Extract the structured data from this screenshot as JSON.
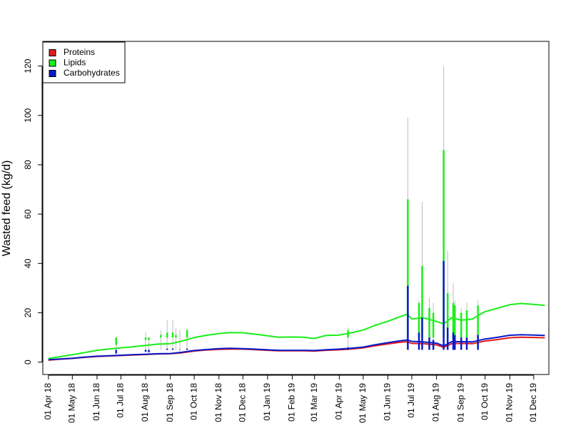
{
  "chart_data": {
    "type": "line",
    "title": "",
    "xlabel": "",
    "ylabel": "Wasted feed (kg/d)",
    "ylim": [
      -5,
      130
    ],
    "xlim": [
      "2018-03-25",
      "2019-12-20"
    ],
    "y_ticks": [
      0,
      20,
      40,
      60,
      80,
      100,
      120
    ],
    "x_ticks": [
      {
        "date": "2018-04-01",
        "label": "01 Apr 18"
      },
      {
        "date": "2018-05-01",
        "label": "01 May 18"
      },
      {
        "date": "2018-06-01",
        "label": "01 Jun 18"
      },
      {
        "date": "2018-07-01",
        "label": "01 Jul 18"
      },
      {
        "date": "2018-08-01",
        "label": "01 Aug 18"
      },
      {
        "date": "2018-09-01",
        "label": "01 Sep 18"
      },
      {
        "date": "2018-10-01",
        "label": "01 Oct 18"
      },
      {
        "date": "2018-11-01",
        "label": "01 Nov 18"
      },
      {
        "date": "2018-12-01",
        "label": "01 Dec 18"
      },
      {
        "date": "2019-01-01",
        "label": "01 Jan 19"
      },
      {
        "date": "2019-02-01",
        "label": "01 Feb 19"
      },
      {
        "date": "2019-03-01",
        "label": "01 Mar 19"
      },
      {
        "date": "2019-04-01",
        "label": "01 Apr 19"
      },
      {
        "date": "2019-05-01",
        "label": "01 May 19"
      },
      {
        "date": "2019-06-01",
        "label": "01 Jun 19"
      },
      {
        "date": "2019-07-01",
        "label": "01 Jul 19"
      },
      {
        "date": "2019-08-01",
        "label": "01 Aug 19"
      },
      {
        "date": "2019-09-01",
        "label": "01 Sep 19"
      },
      {
        "date": "2019-10-01",
        "label": "01 Oct 19"
      },
      {
        "date": "2019-11-01",
        "label": "01 Nov 19"
      },
      {
        "date": "2019-12-01",
        "label": "01 Dec 19"
      }
    ],
    "legend_position": "top-left",
    "grid": false,
    "series": [
      {
        "name": "Proteins",
        "color": "#e31a1c",
        "points": [
          [
            "2018-04-01",
            0.8
          ],
          [
            "2018-04-15",
            1.2
          ],
          [
            "2018-05-01",
            1.5
          ],
          [
            "2018-05-15",
            1.9
          ],
          [
            "2018-06-01",
            2.3
          ],
          [
            "2018-06-15",
            2.5
          ],
          [
            "2018-07-01",
            2.7
          ],
          [
            "2018-07-15",
            2.9
          ],
          [
            "2018-08-01",
            3.1
          ],
          [
            "2018-08-15",
            3.3
          ],
          [
            "2018-09-01",
            3.4
          ],
          [
            "2018-09-15",
            3.8
          ],
          [
            "2018-10-01",
            4.5
          ],
          [
            "2018-10-15",
            4.9
          ],
          [
            "2018-11-01",
            5.2
          ],
          [
            "2018-11-15",
            5.3
          ],
          [
            "2018-12-01",
            5.3
          ],
          [
            "2018-12-15",
            5.1
          ],
          [
            "2019-01-01",
            4.8
          ],
          [
            "2019-01-15",
            4.6
          ],
          [
            "2019-02-01",
            4.6
          ],
          [
            "2019-02-15",
            4.6
          ],
          [
            "2019-03-01",
            4.5
          ],
          [
            "2019-03-15",
            4.8
          ],
          [
            "2019-04-01",
            5.0
          ],
          [
            "2019-04-15",
            5.3
          ],
          [
            "2019-05-01",
            5.8
          ],
          [
            "2019-05-15",
            6.6
          ],
          [
            "2019-06-01",
            7.4
          ],
          [
            "2019-06-15",
            8.0
          ],
          [
            "2019-06-25",
            8.3
          ],
          [
            "2019-07-01",
            7.6
          ],
          [
            "2019-07-15",
            7.5
          ],
          [
            "2019-08-01",
            7.0
          ],
          [
            "2019-08-10",
            6.0
          ],
          [
            "2019-08-20",
            7.5
          ],
          [
            "2019-09-01",
            7.6
          ],
          [
            "2019-09-15",
            7.5
          ],
          [
            "2019-10-01",
            8.6
          ],
          [
            "2019-10-15",
            9.1
          ],
          [
            "2019-11-01",
            9.9
          ],
          [
            "2019-11-15",
            10.1
          ],
          [
            "2019-12-01",
            10.0
          ],
          [
            "2019-12-15",
            9.9
          ]
        ]
      },
      {
        "name": "Lipids",
        "color": "#1aee1a",
        "points": [
          [
            "2018-04-01",
            1.5
          ],
          [
            "2018-04-15",
            2.2
          ],
          [
            "2018-05-01",
            3.0
          ],
          [
            "2018-05-15",
            3.8
          ],
          [
            "2018-06-01",
            4.8
          ],
          [
            "2018-06-15",
            5.3
          ],
          [
            "2018-07-01",
            5.8
          ],
          [
            "2018-07-15",
            6.2
          ],
          [
            "2018-08-01",
            6.8
          ],
          [
            "2018-08-15",
            7.3
          ],
          [
            "2018-09-01",
            7.5
          ],
          [
            "2018-09-15",
            8.5
          ],
          [
            "2018-10-01",
            10.0
          ],
          [
            "2018-10-15",
            10.8
          ],
          [
            "2018-11-01",
            11.6
          ],
          [
            "2018-11-15",
            12.0
          ],
          [
            "2018-12-01",
            11.9
          ],
          [
            "2018-12-15",
            11.4
          ],
          [
            "2019-01-01",
            10.7
          ],
          [
            "2019-01-15",
            10.1
          ],
          [
            "2019-02-01",
            10.2
          ],
          [
            "2019-02-15",
            10.1
          ],
          [
            "2019-03-01",
            9.6
          ],
          [
            "2019-03-15",
            10.8
          ],
          [
            "2019-04-01",
            11.0
          ],
          [
            "2019-04-15",
            11.8
          ],
          [
            "2019-05-01",
            13.0
          ],
          [
            "2019-05-15",
            14.8
          ],
          [
            "2019-06-01",
            16.6
          ],
          [
            "2019-06-15",
            18.3
          ],
          [
            "2019-06-25",
            19.4
          ],
          [
            "2019-07-01",
            17.5
          ],
          [
            "2019-07-15",
            18.0
          ],
          [
            "2019-08-01",
            16.5
          ],
          [
            "2019-08-10",
            15.5
          ],
          [
            "2019-08-20",
            18.0
          ],
          [
            "2019-09-01",
            17.0
          ],
          [
            "2019-09-15",
            17.5
          ],
          [
            "2019-10-01",
            20.5
          ],
          [
            "2019-10-15",
            21.7
          ],
          [
            "2019-11-01",
            23.3
          ],
          [
            "2019-11-15",
            23.8
          ],
          [
            "2019-12-01",
            23.4
          ],
          [
            "2019-12-15",
            23.0
          ]
        ]
      },
      {
        "name": "Carbohydrates",
        "color": "#0a1ac8",
        "points": [
          [
            "2018-04-01",
            1.0
          ],
          [
            "2018-04-15",
            1.3
          ],
          [
            "2018-05-01",
            1.6
          ],
          [
            "2018-05-15",
            2.0
          ],
          [
            "2018-06-01",
            2.4
          ],
          [
            "2018-06-15",
            2.6
          ],
          [
            "2018-07-01",
            2.8
          ],
          [
            "2018-07-15",
            3.0
          ],
          [
            "2018-08-01",
            3.2
          ],
          [
            "2018-08-15",
            3.4
          ],
          [
            "2018-09-01",
            3.5
          ],
          [
            "2018-09-15",
            4.0
          ],
          [
            "2018-10-01",
            4.7
          ],
          [
            "2018-10-15",
            5.1
          ],
          [
            "2018-11-01",
            5.5
          ],
          [
            "2018-11-15",
            5.6
          ],
          [
            "2018-12-01",
            5.5
          ],
          [
            "2018-12-15",
            5.3
          ],
          [
            "2019-01-01",
            5.0
          ],
          [
            "2019-01-15",
            4.8
          ],
          [
            "2019-02-01",
            4.8
          ],
          [
            "2019-02-15",
            4.8
          ],
          [
            "2019-03-01",
            4.7
          ],
          [
            "2019-03-15",
            5.0
          ],
          [
            "2019-04-01",
            5.3
          ],
          [
            "2019-04-15",
            5.6
          ],
          [
            "2019-05-01",
            6.1
          ],
          [
            "2019-05-15",
            7.0
          ],
          [
            "2019-06-01",
            7.9
          ],
          [
            "2019-06-15",
            8.6
          ],
          [
            "2019-06-25",
            9.0
          ],
          [
            "2019-07-01",
            8.4
          ],
          [
            "2019-07-15",
            8.2
          ],
          [
            "2019-08-01",
            7.7
          ],
          [
            "2019-08-10",
            6.6
          ],
          [
            "2019-08-20",
            8.3
          ],
          [
            "2019-09-01",
            8.3
          ],
          [
            "2019-09-15",
            8.2
          ],
          [
            "2019-10-01",
            9.4
          ],
          [
            "2019-10-15",
            10.0
          ],
          [
            "2019-11-01",
            10.9
          ],
          [
            "2019-11-15",
            11.1
          ],
          [
            "2019-12-01",
            11.0
          ],
          [
            "2019-12-15",
            10.8
          ]
        ]
      }
    ],
    "spikes": [
      {
        "date": "2018-06-25",
        "grey": 8,
        "Lipids": 7,
        "Carbohydrates": 3.5
      },
      {
        "date": "2018-08-01",
        "grey": 12,
        "Lipids": 9,
        "Carbohydrates": 4.2
      },
      {
        "date": "2018-08-05",
        "grey": 10,
        "Lipids": 9,
        "Carbohydrates": 4
      },
      {
        "date": "2018-08-20",
        "grey": 13,
        "Lipids": 11,
        "Carbohydrates": 5
      },
      {
        "date": "2018-08-28",
        "grey": 17,
        "Lipids": 12,
        "Carbohydrates": 5.5
      },
      {
        "date": "2018-09-04",
        "grey": 17,
        "Lipids": 12,
        "Carbohydrates": 5.5
      },
      {
        "date": "2018-09-08",
        "grey": 14,
        "Lipids": 11,
        "Carbohydrates": 5
      },
      {
        "date": "2018-09-13",
        "grey": 13,
        "Lipids": 10,
        "Carbohydrates": 4.8
      },
      {
        "date": "2018-09-22",
        "grey": 14,
        "Lipids": 13,
        "Carbohydrates": 5.5
      },
      {
        "date": "2019-04-12",
        "grey": 14,
        "Lipids": 13,
        "Carbohydrates": 6
      },
      {
        "date": "2019-06-26",
        "grey": 99,
        "Lipids": 66,
        "Carbohydrates": 31
      },
      {
        "date": "2019-07-10",
        "grey": 25,
        "Lipids": 24,
        "Carbohydrates": 12
      },
      {
        "date": "2019-07-14",
        "grey": 65,
        "Lipids": 39,
        "Carbohydrates": 18
      },
      {
        "date": "2019-07-23",
        "grey": 26,
        "Lipids": 22,
        "Carbohydrates": 10
      },
      {
        "date": "2019-07-28",
        "grey": 24,
        "Lipids": 20,
        "Carbohydrates": 9
      },
      {
        "date": "2019-08-10",
        "grey": 120,
        "Lipids": 86,
        "Carbohydrates": 41
      },
      {
        "date": "2019-08-15",
        "grey": 45,
        "Lipids": 28,
        "Carbohydrates": 14
      },
      {
        "date": "2019-08-22",
        "grey": 32,
        "Lipids": 24,
        "Carbohydrates": 12
      },
      {
        "date": "2019-08-24",
        "grey": 25,
        "Lipids": 23,
        "Carbohydrates": 11
      },
      {
        "date": "2019-09-01",
        "grey": 22,
        "Lipids": 20,
        "Carbohydrates": 10
      },
      {
        "date": "2019-09-08",
        "grey": 24,
        "Lipids": 21,
        "Carbohydrates": 10
      },
      {
        "date": "2019-09-22",
        "grey": 25,
        "Lipids": 23,
        "Carbohydrates": 11
      }
    ]
  }
}
